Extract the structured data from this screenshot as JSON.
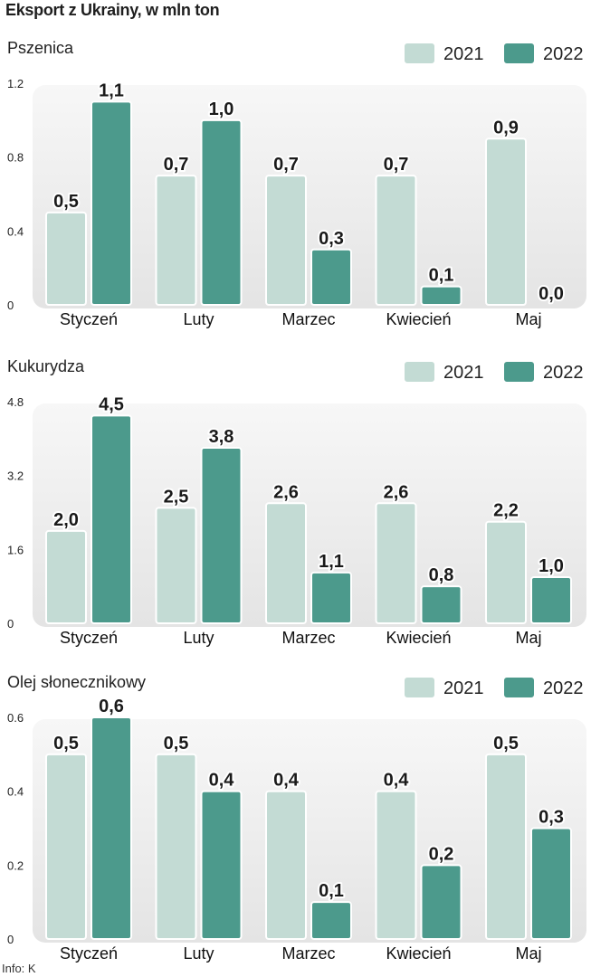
{
  "title": "Eksport z Ukrainy, w mln ton",
  "source": "Info: K",
  "colors": {
    "2021": "#c3dbd4",
    "2022": "#4c9a8c",
    "panel": "#ececec"
  },
  "chart_data": [
    {
      "type": "bar",
      "title": "Pszenica",
      "categories": [
        "Styczeń",
        "Luty",
        "Marzec",
        "Kwiecień",
        "Maj"
      ],
      "series": [
        {
          "name": "2021",
          "values": [
            0.5,
            0.7,
            0.7,
            0.7,
            0.9
          ],
          "labels": [
            "0,5",
            "0,7",
            "0,7",
            "0,7",
            "0,9"
          ]
        },
        {
          "name": "2022",
          "values": [
            1.1,
            1.0,
            0.3,
            0.1,
            0.0
          ],
          "labels": [
            "1,1",
            "1,0",
            "0,3",
            "0,1",
            "0,0"
          ]
        }
      ],
      "ylim": [
        0,
        1.2
      ],
      "yticks": [
        "0",
        "0.4",
        "0.8",
        "1.2"
      ],
      "ytick_values": [
        0,
        0.4,
        0.8,
        1.2
      ],
      "legend": "top-right",
      "grid": false
    },
    {
      "type": "bar",
      "title": "Kukurydza",
      "categories": [
        "Styczeń",
        "Luty",
        "Marzec",
        "Kwiecień",
        "Maj"
      ],
      "series": [
        {
          "name": "2021",
          "values": [
            2.0,
            2.5,
            2.6,
            2.6,
            2.2
          ],
          "labels": [
            "2,0",
            "2,5",
            "2,6",
            "2,6",
            "2,2"
          ]
        },
        {
          "name": "2022",
          "values": [
            4.5,
            3.8,
            1.1,
            0.8,
            1.0
          ],
          "labels": [
            "4,5",
            "3,8",
            "1,1",
            "0,8",
            "1,0"
          ]
        }
      ],
      "ylim": [
        0,
        4.8
      ],
      "yticks": [
        "0",
        "1.6",
        "3.2",
        "4.8"
      ],
      "ytick_values": [
        0,
        1.6,
        3.2,
        4.8
      ],
      "legend": "top-right",
      "grid": false
    },
    {
      "type": "bar",
      "title": "Olej słonecznikowy",
      "categories": [
        "Styczeń",
        "Luty",
        "Marzec",
        "Kwiecień",
        "Maj"
      ],
      "series": [
        {
          "name": "2021",
          "values": [
            0.5,
            0.5,
            0.4,
            0.4,
            0.5
          ],
          "labels": [
            "0,5",
            "0,5",
            "0,4",
            "0,4",
            "0,5"
          ]
        },
        {
          "name": "2022",
          "values": [
            0.6,
            0.4,
            0.1,
            0.2,
            0.3
          ],
          "labels": [
            "0,6",
            "0,4",
            "0,1",
            "0,2",
            "0,3"
          ]
        }
      ],
      "ylim": [
        0,
        0.6
      ],
      "yticks": [
        "0",
        "0.2",
        "0.4",
        "0.6"
      ],
      "ytick_values": [
        0,
        0.2,
        0.4,
        0.6
      ],
      "legend": "top-right",
      "grid": false
    }
  ]
}
